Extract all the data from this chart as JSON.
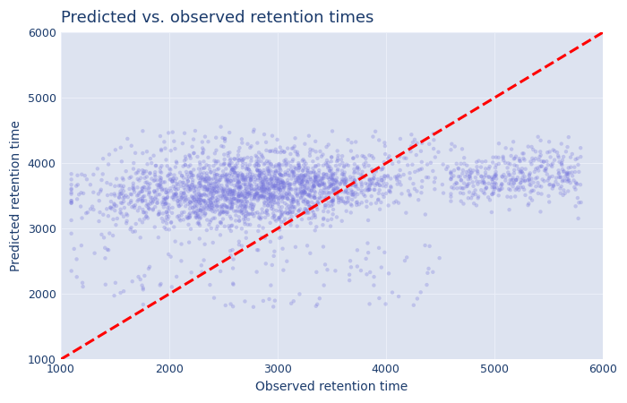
{
  "title": "Predicted vs. observed retention times",
  "xlabel": "Observed retention time",
  "ylabel": "Predicted retention time",
  "xlim": [
    1000,
    6000
  ],
  "ylim": [
    1000,
    6000
  ],
  "xticks": [
    1000,
    2000,
    3000,
    4000,
    5000,
    6000
  ],
  "yticks": [
    1000,
    2000,
    3000,
    4000,
    5000,
    6000
  ],
  "scatter_color": "#7777dd",
  "scatter_alpha": 0.3,
  "scatter_size": 10,
  "diagonal_color": "red",
  "diagonal_style": "--",
  "diagonal_linewidth": 2.2,
  "plot_bg_color": "#dde3f0",
  "fig_bg_color": "#ffffff",
  "grid_color": "#eaeef8",
  "title_color": "#1a3a6b",
  "label_color": "#1a3a6b",
  "tick_color": "#1a3a6b",
  "n_points": 2500,
  "title_fontsize": 13,
  "label_fontsize": 10
}
